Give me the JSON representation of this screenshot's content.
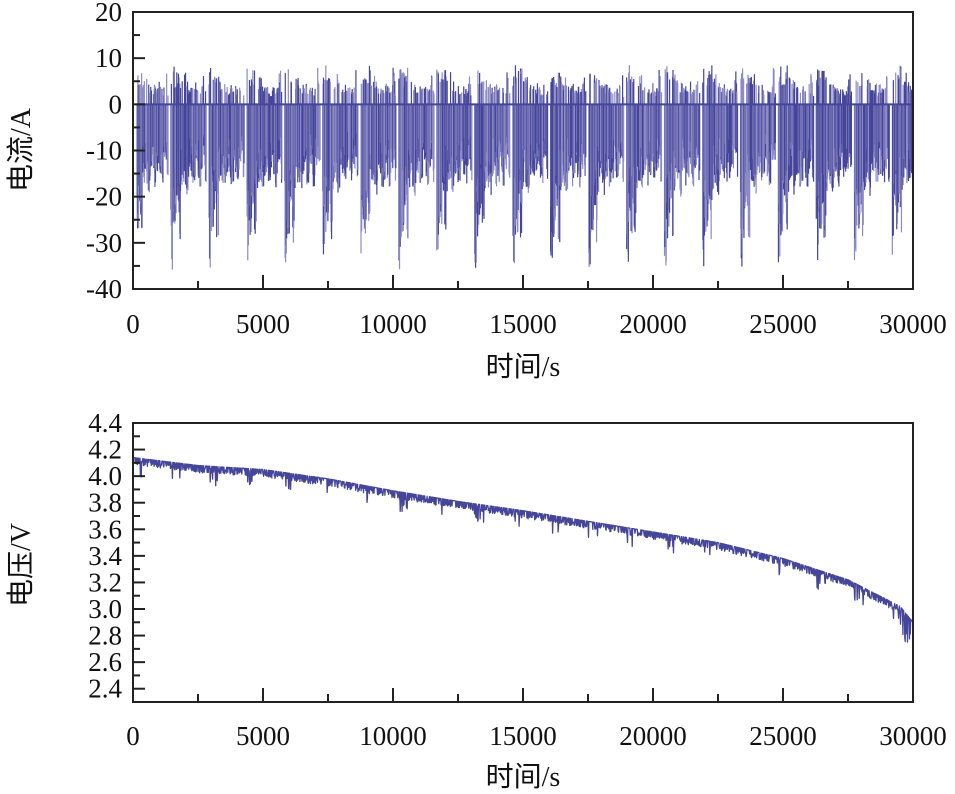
{
  "chart_data": [
    {
      "type": "line",
      "ylabel": "电流/A",
      "xlabel": "时间/s",
      "xlim": [
        0,
        30000
      ],
      "ylim": [
        -40,
        20
      ],
      "x_ticks": [
        "0",
        "5000",
        "10000",
        "15000",
        "20000",
        "25000",
        "30000"
      ],
      "y_ticks": [
        "20",
        "10",
        "0",
        "-10",
        "-20",
        "-30",
        "-40"
      ],
      "grid": false,
      "color": "#45459a",
      "color_light": "#8d8bc4",
      "series": [
        {
          "repeating_cycle_period_s": 1460,
          "peak_discharge_A": -36,
          "peak_charge_A": 8.5,
          "cycle_discharge_envelope_A": [
            -36,
            -29,
            -28,
            -22,
            -30,
            -19,
            -17,
            -18,
            -20,
            -16,
            -15,
            -18,
            -17,
            -13,
            -16,
            -18,
            -14,
            -12,
            -17,
            -11,
            0
          ],
          "cycle_charge_envelope_A": [
            8,
            8.5,
            7,
            7.5,
            8.5,
            6.5,
            6,
            7,
            5,
            4.5,
            4,
            4.5,
            3.5,
            5,
            4,
            3.5,
            4.5,
            8,
            3,
            2,
            0
          ]
        }
      ]
    },
    {
      "type": "line",
      "ylabel": "电压/V",
      "xlabel": "时间/s",
      "xlim": [
        0,
        30000
      ],
      "ylim": [
        2.3,
        4.4
      ],
      "x_ticks": [
        "0",
        "5000",
        "10000",
        "15000",
        "20000",
        "25000",
        "30000"
      ],
      "y_ticks": [
        "4.4",
        "4.2",
        "4.0",
        "3.8",
        "3.6",
        "3.4",
        "3.2",
        "3.0",
        "2.8",
        "2.6",
        "2.4"
      ],
      "grid": false,
      "color": "#45459a",
      "series": [
        {
          "x": [
            0,
            2500,
            5000,
            7500,
            10000,
            12500,
            15000,
            17500,
            20000,
            22500,
            25000,
            27500,
            29500,
            30000
          ],
          "y": [
            4.14,
            4.08,
            4.05,
            3.98,
            3.89,
            3.81,
            3.74,
            3.66,
            3.58,
            3.5,
            3.38,
            3.22,
            3.02,
            2.9
          ],
          "min_y": 2.75
        }
      ]
    }
  ]
}
